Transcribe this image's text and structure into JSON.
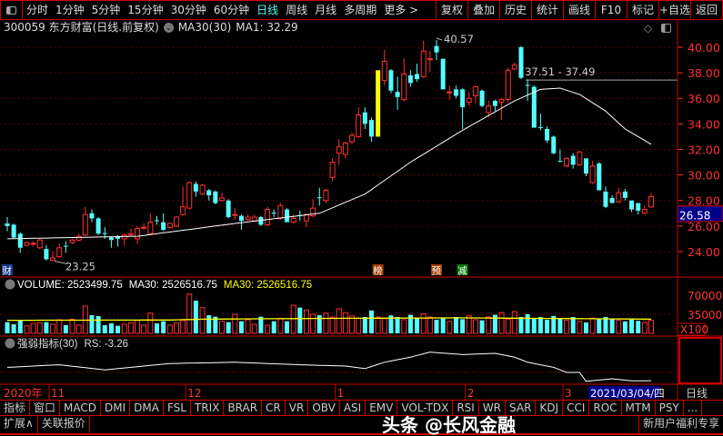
{
  "toolbar": {
    "left_items": [
      {
        "label": "分时"
      },
      {
        "label": "1分钟"
      },
      {
        "label": "5分钟"
      },
      {
        "label": "15分钟"
      },
      {
        "label": "30分钟"
      },
      {
        "label": "60分钟"
      },
      {
        "label": "日线",
        "active": true
      },
      {
        "label": "周线"
      },
      {
        "label": "月线"
      },
      {
        "label": "多周期"
      },
      {
        "label": "更多 >"
      }
    ],
    "right_items": [
      {
        "label": "复权"
      },
      {
        "label": "叠加"
      },
      {
        "label": "历史"
      },
      {
        "label": "统计"
      },
      {
        "label": "画线"
      },
      {
        "label": "F10"
      },
      {
        "label": "标记"
      },
      {
        "label": "+自选"
      },
      {
        "label": "返回"
      }
    ]
  },
  "info": {
    "title": "300059 东方财富(日线.前复权)",
    "ma_name": "MA30(30)",
    "ma_value": "MA1: 32.29"
  },
  "colors": {
    "up": "#ff3030",
    "down": "#55ffff",
    "ma": "#ffffff",
    "vol_ma": "#ffff00",
    "grid": "#aa0000",
    "axis": "#ff3030",
    "highlight": "#ffff00"
  },
  "chart_data": {
    "type": "candlestick",
    "price_axis": {
      "ticks": [
        "40.00",
        "38.00",
        "36.00",
        "34.00",
        "32.00",
        "30.00",
        "28.00",
        "26.00",
        "24.00"
      ],
      "range": [
        22.8,
        41.2
      ],
      "current": "26.58"
    },
    "candles": [
      [
        26.2,
        26.7,
        25.6,
        26.0
      ],
      [
        26.1,
        26.2,
        25.0,
        25.1
      ],
      [
        25.4,
        25.5,
        23.9,
        24.3
      ],
      [
        24.5,
        24.8,
        24.4,
        24.7
      ],
      [
        24.6,
        24.8,
        24.4,
        24.65
      ],
      [
        24.3,
        25.0,
        24.2,
        24.9
      ],
      [
        24.2,
        24.5,
        23.3,
        23.4
      ],
      [
        23.3,
        24.0,
        23.25,
        23.5
      ],
      [
        23.6,
        24.6,
        23.5,
        24.3
      ],
      [
        24.45,
        24.8,
        23.9,
        24.4
      ],
      [
        24.7,
        25.0,
        24.6,
        24.9
      ],
      [
        24.9,
        25.4,
        24.8,
        25.2
      ],
      [
        25.3,
        27.5,
        25.2,
        26.9
      ],
      [
        27.0,
        27.3,
        26.3,
        26.6
      ],
      [
        26.6,
        26.7,
        25.3,
        25.4
      ],
      [
        25.45,
        25.9,
        25.0,
        25.4
      ],
      [
        25.1,
        25.2,
        24.3,
        24.9
      ],
      [
        25.2,
        25.3,
        24.4,
        25.0
      ],
      [
        25.0,
        25.4,
        24.5,
        25.3
      ],
      [
        25.3,
        25.8,
        25.2,
        25.4
      ],
      [
        25.0,
        26.0,
        24.6,
        25.8
      ],
      [
        25.85,
        26.2,
        25.7,
        25.9
      ],
      [
        25.4,
        27.0,
        25.3,
        26.3
      ],
      [
        26.45,
        26.8,
        26.1,
        26.4
      ],
      [
        26.3,
        27.0,
        25.6,
        25.7
      ],
      [
        25.9,
        26.3,
        25.8,
        26.2
      ],
      [
        26.0,
        26.8,
        25.9,
        26.7
      ],
      [
        26.9,
        29.1,
        26.8,
        27.5
      ],
      [
        27.4,
        29.5,
        27.3,
        29.4
      ],
      [
        29.3,
        29.5,
        28.3,
        28.7
      ],
      [
        28.5,
        29.3,
        28.4,
        29.2
      ],
      [
        28.8,
        28.9,
        28.0,
        28.4
      ],
      [
        28.7,
        28.8,
        27.7,
        27.8
      ],
      [
        28.0,
        28.6,
        27.9,
        28.2
      ],
      [
        28.0,
        28.1,
        26.6,
        26.7
      ],
      [
        26.85,
        27.4,
        26.5,
        26.9
      ],
      [
        26.8,
        26.9,
        25.7,
        26.4
      ],
      [
        26.5,
        26.9,
        26.4,
        26.7
      ],
      [
        26.4,
        26.9,
        26.3,
        26.7
      ],
      [
        26.7,
        26.8,
        26.0,
        26.1
      ],
      [
        26.1,
        27.5,
        26.0,
        27.3
      ],
      [
        27.05,
        27.3,
        26.7,
        27.0
      ],
      [
        26.6,
        27.8,
        26.5,
        27.6
      ],
      [
        27.3,
        27.4,
        26.3,
        26.3
      ],
      [
        26.3,
        26.9,
        26.2,
        26.6
      ],
      [
        26.85,
        27.2,
        26.4,
        26.8
      ],
      [
        26.4,
        27.0,
        25.9,
        26.9
      ],
      [
        26.8,
        28.1,
        26.7,
        27.4
      ],
      [
        28.25,
        29.0,
        27.6,
        28.2
      ],
      [
        28.0,
        28.9,
        27.8,
        28.8
      ],
      [
        29.8,
        31.3,
        29.5,
        31.0
      ],
      [
        31.7,
        32.8,
        30.8,
        32.2
      ],
      [
        31.6,
        32.6,
        31.3,
        32.5
      ],
      [
        32.6,
        33.3,
        32.4,
        33.1
      ],
      [
        33.0,
        35.3,
        32.9,
        34.7
      ],
      [
        34.9,
        35.3,
        33.6,
        34.0
      ],
      [
        34.3,
        34.5,
        32.6,
        33.0
      ],
      [
        33.0,
        38.2,
        33.0,
        38.2
      ],
      [
        37.4,
        39.8,
        37.0,
        38.9
      ],
      [
        38.2,
        38.3,
        36.4,
        36.6
      ],
      [
        36.5,
        37.7,
        35.1,
        36.1
      ],
      [
        35.9,
        39.1,
        35.8,
        37.9
      ],
      [
        37.8,
        38.2,
        36.9,
        37.2
      ],
      [
        37.9,
        38.7,
        37.3,
        37.5
      ],
      [
        37.7,
        40.5,
        37.6,
        39.7
      ],
      [
        39.05,
        39.7,
        38.1,
        39.1
      ],
      [
        40.1,
        40.57,
        39.0,
        39.6
      ],
      [
        39.1,
        39.1,
        36.7,
        36.7
      ],
      [
        36.45,
        37.0,
        35.9,
        36.5
      ],
      [
        36.7,
        37.0,
        36.0,
        36.2
      ],
      [
        36.7,
        36.8,
        33.6,
        35.3
      ],
      [
        35.7,
        36.5,
        35.4,
        36.0
      ],
      [
        36.2,
        37.0,
        35.6,
        36.9
      ],
      [
        36.6,
        36.7,
        35.3,
        35.4
      ],
      [
        34.9,
        35.8,
        34.5,
        35.4
      ],
      [
        35.8,
        35.9,
        35.0,
        35.4
      ],
      [
        35.7,
        36.0,
        34.3,
        35.9
      ],
      [
        35.9,
        38.4,
        35.7,
        38.2
      ],
      [
        38.3,
        38.8,
        38.2,
        38.6
      ],
      [
        40.0,
        40.1,
        37.5,
        37.6
      ],
      [
        37.05,
        37.5,
        35.8,
        37.0
      ],
      [
        36.9,
        37.0,
        33.7,
        33.7
      ],
      [
        33.75,
        34.8,
        33.5,
        33.7
      ],
      [
        33.6,
        33.8,
        32.5,
        32.7
      ],
      [
        33.0,
        33.1,
        31.6,
        31.7
      ],
      [
        31.1,
        32.0,
        31.0,
        31.05
      ],
      [
        30.7,
        31.4,
        30.6,
        31.3
      ],
      [
        31.5,
        31.7,
        30.5,
        30.8
      ],
      [
        30.8,
        31.9,
        30.7,
        31.8
      ],
      [
        31.3,
        31.3,
        29.9,
        30.1
      ],
      [
        29.4,
        31.1,
        29.3,
        30.7
      ],
      [
        30.9,
        31.0,
        28.8,
        28.8
      ],
      [
        28.7,
        29.1,
        27.4,
        27.5
      ],
      [
        28.2,
        28.4,
        27.8,
        27.8
      ],
      [
        27.9,
        29.0,
        27.8,
        28.6
      ],
      [
        28.7,
        28.9,
        28.0,
        28.2
      ],
      [
        28.0,
        28.0,
        27.1,
        27.3
      ],
      [
        27.8,
        27.8,
        26.9,
        27.2
      ],
      [
        27.0,
        27.6,
        26.9,
        27.3
      ],
      [
        27.5,
        28.6,
        27.4,
        28.3
      ]
    ],
    "highlight_candle": 57,
    "ma30_keypoints": [
      [
        0,
        25.0
      ],
      [
        20,
        25.2
      ],
      [
        35,
        26.2
      ],
      [
        48,
        27.0
      ],
      [
        55,
        28.5
      ],
      [
        62,
        31.0
      ],
      [
        70,
        33.5
      ],
      [
        78,
        35.8
      ],
      [
        82,
        36.7
      ],
      [
        85,
        36.8
      ],
      [
        88,
        36.3
      ],
      [
        92,
        35.0
      ],
      [
        95,
        33.6
      ],
      [
        99,
        32.4
      ]
    ],
    "annotations": {
      "high": "40.57",
      "low": "23.25",
      "range_line": "37.51 - 37.49",
      "range_price": 37.5,
      "high_index": 66,
      "low_index": 7
    },
    "events": [
      {
        "label": "财",
        "index": 0,
        "color": "#1a3a8a"
      },
      {
        "label": "榜",
        "index": 57,
        "color": "#a04000"
      },
      {
        "label": "预",
        "index": 66,
        "color": "#a04000"
      },
      {
        "label": "减",
        "index": 70,
        "color": "#007a00"
      }
    ],
    "volume": {
      "header": "VOLUME: 2523499.75",
      "ma_label": "MA30: 2526516.75",
      "ma_label_yellow": "MA30: 2526516.75",
      "ticks": [
        "70000",
        "35000"
      ],
      "unit": "X100",
      "values": [
        20556,
        16667,
        25000,
        13900,
        18300,
        19400,
        20600,
        16700,
        25000,
        15000,
        26100,
        15000,
        50000,
        33300,
        31700,
        15000,
        18300,
        13900,
        16700,
        19400,
        23900,
        15000,
        37200,
        18300,
        22200,
        15000,
        19400,
        23900,
        72200,
        60000,
        47200,
        33300,
        30600,
        22200,
        20600,
        35000,
        22200,
        25000,
        16700,
        30600,
        15000,
        22200,
        27800,
        22200,
        51700,
        47200,
        42800,
        35000,
        33300,
        37200,
        30000,
        45000,
        38000,
        32000,
        28000,
        30000,
        42000,
        30000,
        27000,
        33000,
        30000,
        25000,
        34000,
        28000,
        36000,
        30000,
        25000,
        28000,
        22000,
        30000,
        26000,
        32000,
        25000,
        24000,
        30000,
        34000,
        38000,
        26000,
        40000,
        30000,
        35000,
        28000,
        30000,
        25000,
        32000,
        27000,
        24000,
        30000,
        22000,
        20000,
        28000,
        26000,
        30000,
        27000,
        24000,
        22000,
        25000,
        23000,
        20000,
        24000
      ],
      "ma_keypoints": [
        [
          0,
          24000
        ],
        [
          25,
          24500
        ],
        [
          30,
          26000
        ],
        [
          50,
          27500
        ],
        [
          70,
          28500
        ],
        [
          99,
          26000
        ]
      ]
    },
    "rs": {
      "header": "强弱指标(30)",
      "value": "RS: -3.26",
      "keypoints": [
        [
          0,
          2
        ],
        [
          8,
          3
        ],
        [
          15,
          1
        ],
        [
          25,
          3.5
        ],
        [
          35,
          4
        ],
        [
          45,
          3
        ],
        [
          52,
          2.5
        ],
        [
          55,
          1.5
        ],
        [
          58,
          4
        ],
        [
          62,
          6
        ],
        [
          65,
          8
        ],
        [
          70,
          7
        ],
        [
          75,
          7.5
        ],
        [
          78,
          6
        ],
        [
          80,
          4
        ],
        [
          84,
          2
        ],
        [
          86,
          0
        ],
        [
          88,
          0
        ],
        [
          89,
          -3.5
        ],
        [
          93,
          -2.5
        ],
        [
          96,
          -3.3
        ],
        [
          99,
          -3.26
        ]
      ]
    }
  },
  "date_axis": {
    "year": "2020年",
    "months": [
      {
        "label": "11",
        "index": 7
      },
      {
        "label": "12",
        "index": 28
      },
      {
        "label": "1",
        "index": 51
      },
      {
        "label": "2",
        "index": 71
      },
      {
        "label": "3",
        "index": 86
      }
    ],
    "cursor_date": "2021/03/04/四",
    "period": "日线"
  },
  "indicator_tabs": [
    "指标",
    "窗口",
    "MACD",
    "DMI",
    "DMA",
    "FSL",
    "TRIX",
    "BRAR",
    "CR",
    "VR",
    "OBV",
    "ASI",
    "EMV",
    "VOL-TDX",
    "RSI",
    "WR",
    "SAR",
    "KDJ",
    "CCI",
    "ROC",
    "MTM",
    "PSY",
    "..."
  ],
  "bottom": {
    "expand": "扩展∧",
    "related": "关联报价",
    "promo": "新用户福利专享"
  },
  "watermark": "头条 @长风金融"
}
